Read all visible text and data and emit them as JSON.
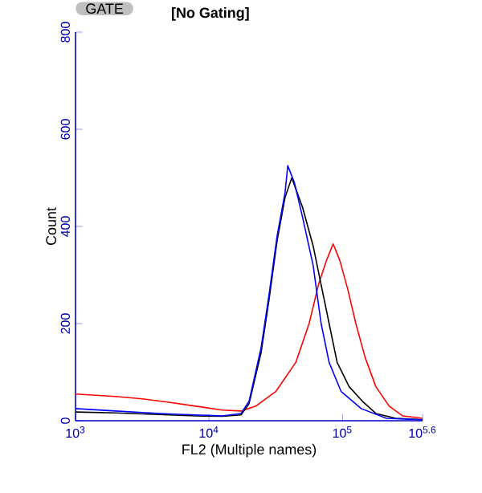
{
  "chart_data": {
    "type": "line",
    "xlabel": "FL2 (Multiple names)",
    "ylabel": "Count",
    "annotations": [
      "GATE",
      "[No Gating]"
    ],
    "log": "x",
    "xlim": [
      1000,
      398107
    ],
    "ylim": [
      0,
      800
    ],
    "xticks": [
      {
        "value": 1000,
        "label": "10$^{3}$"
      },
      {
        "value": 10000,
        "label": "10$^{4}$"
      },
      {
        "value": 100000,
        "label": "10$^{5}$"
      },
      {
        "value": 398107,
        "label": "10$^{5.6}$"
      }
    ],
    "yticks": [
      0,
      200,
      400,
      600,
      800
    ],
    "grid": false,
    "marker": "none",
    "line_style": "solid",
    "series": [
      {
        "color": "#ff0000",
        "x": [
          1000,
          1995,
          3162,
          5012,
          7943,
          12589,
          17378,
          22387,
          31623,
          44668,
          56234,
          66069,
          75858,
          85114,
          95499,
          109648,
          125893,
          147911,
          177828,
          223872,
          281838,
          398107
        ],
        "values": [
          55,
          50,
          45,
          38,
          30,
          22,
          20,
          30,
          60,
          120,
          200,
          280,
          330,
          364,
          330,
          270,
          200,
          130,
          70,
          30,
          10,
          5
        ]
      },
      {
        "color": "#000000",
        "x": [
          1000,
          1995,
          3162,
          5012,
          7943,
          12589,
          17378,
          19953,
          24547,
          28184,
          32359,
          37154,
          41687,
          50119,
          60256,
          69183,
          79433,
          91201,
          112202,
          141254,
          177828,
          251189,
          398107
        ],
        "values": [
          18,
          16,
          14,
          12,
          10,
          9,
          12,
          35,
          140,
          250,
          370,
          460,
          500,
          440,
          360,
          280,
          200,
          120,
          70,
          40,
          15,
          5,
          2
        ]
      },
      {
        "color": "#0000ff",
        "x": [
          1000,
          1995,
          3162,
          5012,
          7943,
          12589,
          17378,
          19953,
          24547,
          28184,
          32359,
          37154,
          38905,
          43652,
          50119,
          60256,
          69183,
          79433,
          97724,
          138038,
          213796,
          398107
        ],
        "values": [
          25,
          20,
          17,
          14,
          12,
          10,
          15,
          40,
          150,
          260,
          380,
          470,
          525,
          490,
          420,
          320,
          200,
          120,
          60,
          25,
          5,
          2
        ]
      }
    ]
  }
}
